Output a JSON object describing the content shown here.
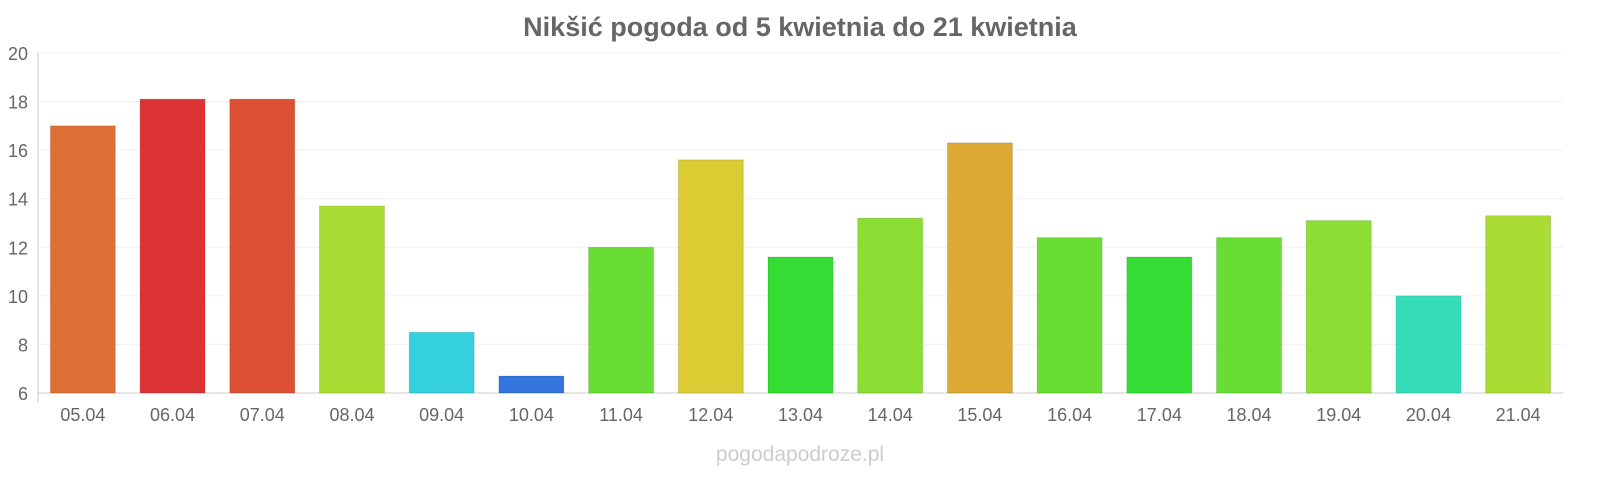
{
  "chart_data": {
    "type": "bar",
    "title": "Nikšić pogoda od 5 kwietnia do 21 kwietnia",
    "xlabel": "",
    "ylabel": "",
    "ylim": [
      6,
      20
    ],
    "yticks": [
      6,
      8,
      10,
      12,
      14,
      16,
      18,
      20
    ],
    "grid": true,
    "categories": [
      "05.04",
      "06.04",
      "07.04",
      "08.04",
      "09.04",
      "10.04",
      "11.04",
      "12.04",
      "13.04",
      "14.04",
      "15.04",
      "16.04",
      "17.04",
      "18.04",
      "19.04",
      "20.04",
      "21.04"
    ],
    "values": [
      17.0,
      18.1,
      18.1,
      13.7,
      8.5,
      6.7,
      12.0,
      15.6,
      11.6,
      13.2,
      16.3,
      12.4,
      11.6,
      12.4,
      13.1,
      10.0,
      13.3
    ],
    "colors": [
      "#dd7034",
      "#dc3434",
      "#dd5034",
      "#aadd34",
      "#34d0dd",
      "#3474dd",
      "#6add34",
      "#dccc34",
      "#34dd34",
      "#8cdd34",
      "#dca934",
      "#6add34",
      "#34dd34",
      "#6add34",
      "#8cdd34",
      "#34ddb8",
      "#aadd34"
    ]
  },
  "watermark": "pogodapodroze.pl"
}
